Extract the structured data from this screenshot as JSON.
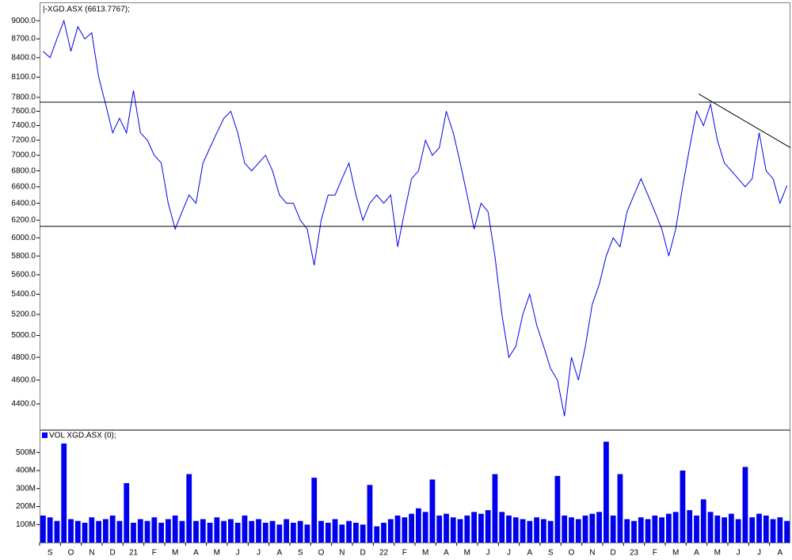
{
  "x_axis": {
    "labels": [
      "S",
      "O",
      "N",
      "D",
      "21",
      "F",
      "M",
      "A",
      "M",
      "J",
      "J",
      "A",
      "S",
      "O",
      "N",
      "D",
      "22",
      "F",
      "M",
      "A",
      "M",
      "J",
      "J",
      "A",
      "S",
      "O",
      "N",
      "D",
      "23",
      "F",
      "M",
      "A",
      "M",
      "J",
      "J",
      "A"
    ]
  },
  "chart_data": [
    {
      "type": "line",
      "title": "|-XGD.ASX (6613.7767);",
      "color": "#0000ee",
      "log": true,
      "ylim": [
        4190,
        9300
      ],
      "yticks": [
        {
          "value": 9000,
          "label": "9000.0"
        },
        {
          "value": 8700,
          "label": "8700.0"
        },
        {
          "value": 8400,
          "label": "8400.0"
        },
        {
          "value": 8100,
          "label": "8100.0"
        },
        {
          "value": 7800,
          "label": "7800.0"
        },
        {
          "value": 7600,
          "label": "7600.0"
        },
        {
          "value": 7400,
          "label": "7400.0"
        },
        {
          "value": 7200,
          "label": "7200.0"
        },
        {
          "value": 7000,
          "label": "7000.0"
        },
        {
          "value": 6800,
          "label": "6800.0"
        },
        {
          "value": 6600,
          "label": "6600.0"
        },
        {
          "value": 6400,
          "label": "6400.0"
        },
        {
          "value": 6200,
          "label": "6200.0"
        },
        {
          "value": 6000,
          "label": "6000.0"
        },
        {
          "value": 5800,
          "label": "5800.0"
        },
        {
          "value": 5600,
          "label": "5600.0"
        },
        {
          "value": 5400,
          "label": "5400.0"
        },
        {
          "value": 5200,
          "label": "5200.0"
        },
        {
          "value": 5000,
          "label": "5000.0"
        },
        {
          "value": 4800,
          "label": "4800.0"
        },
        {
          "value": 4600,
          "label": "4600.0"
        },
        {
          "value": 4400,
          "label": "4400.0"
        }
      ],
      "values": [
        8500,
        8400,
        8700,
        9000,
        8500,
        8900,
        8700,
        8800,
        8100,
        7700,
        7300,
        7500,
        7300,
        7900,
        7300,
        7200,
        7000,
        6900,
        6400,
        6100,
        6300,
        6500,
        6400,
        6900,
        7100,
        7300,
        7500,
        7600,
        7300,
        6900,
        6800,
        6900,
        7000,
        6800,
        6500,
        6400,
        6400,
        6200,
        6100,
        5700,
        6200,
        6500,
        6500,
        6700,
        6900,
        6500,
        6200,
        6400,
        6500,
        6400,
        6500,
        5900,
        6300,
        6700,
        6800,
        7200,
        7000,
        7100,
        7600,
        7300,
        6900,
        6500,
        6100,
        6400,
        6300,
        5800,
        5200,
        4800,
        4900,
        5200,
        5400,
        5100,
        4900,
        4700,
        4600,
        4300,
        4800,
        4600,
        4900,
        5300,
        5500,
        5800,
        6000,
        5900,
        6300,
        6500,
        6700,
        6500,
        6300,
        6100,
        5800,
        6100,
        6600,
        7100,
        7600,
        7400,
        7700,
        7200,
        6900,
        6800,
        6700,
        6600,
        6700,
        7300,
        6800,
        6700,
        6400,
        6614
      ],
      "hlines": [
        7730,
        6130
      ],
      "trendline": {
        "x": [
          31.6,
          36
        ],
        "values": [
          7850,
          7100
        ]
      }
    },
    {
      "type": "bar",
      "title": "VOL XGD.ASX (0);",
      "color": "#0000ee",
      "ylim": [
        0,
        620000000
      ],
      "yticks": [
        {
          "value": 500000000,
          "label": "500M"
        },
        {
          "value": 400000000,
          "label": "400M"
        },
        {
          "value": 300000000,
          "label": "300M"
        },
        {
          "value": 200000000,
          "label": "200M"
        },
        {
          "value": 100000000,
          "label": "100M"
        }
      ],
      "values": [
        150000000,
        140000000,
        120000000,
        550000000,
        130000000,
        120000000,
        110000000,
        140000000,
        120000000,
        130000000,
        150000000,
        120000000,
        330000000,
        110000000,
        130000000,
        120000000,
        140000000,
        110000000,
        130000000,
        150000000,
        120000000,
        380000000,
        120000000,
        130000000,
        110000000,
        140000000,
        120000000,
        130000000,
        110000000,
        150000000,
        120000000,
        130000000,
        110000000,
        120000000,
        100000000,
        130000000,
        110000000,
        120000000,
        100000000,
        360000000,
        120000000,
        110000000,
        130000000,
        100000000,
        120000000,
        110000000,
        100000000,
        320000000,
        90000000,
        110000000,
        130000000,
        150000000,
        140000000,
        160000000,
        190000000,
        170000000,
        350000000,
        150000000,
        160000000,
        140000000,
        130000000,
        150000000,
        170000000,
        160000000,
        180000000,
        380000000,
        170000000,
        150000000,
        140000000,
        130000000,
        120000000,
        140000000,
        130000000,
        120000000,
        370000000,
        150000000,
        140000000,
        130000000,
        150000000,
        160000000,
        170000000,
        560000000,
        150000000,
        380000000,
        130000000,
        120000000,
        140000000,
        130000000,
        150000000,
        140000000,
        160000000,
        170000000,
        400000000,
        180000000,
        150000000,
        240000000,
        170000000,
        150000000,
        140000000,
        160000000,
        130000000,
        420000000,
        140000000,
        160000000,
        150000000,
        130000000,
        140000000,
        120000000
      ]
    }
  ]
}
